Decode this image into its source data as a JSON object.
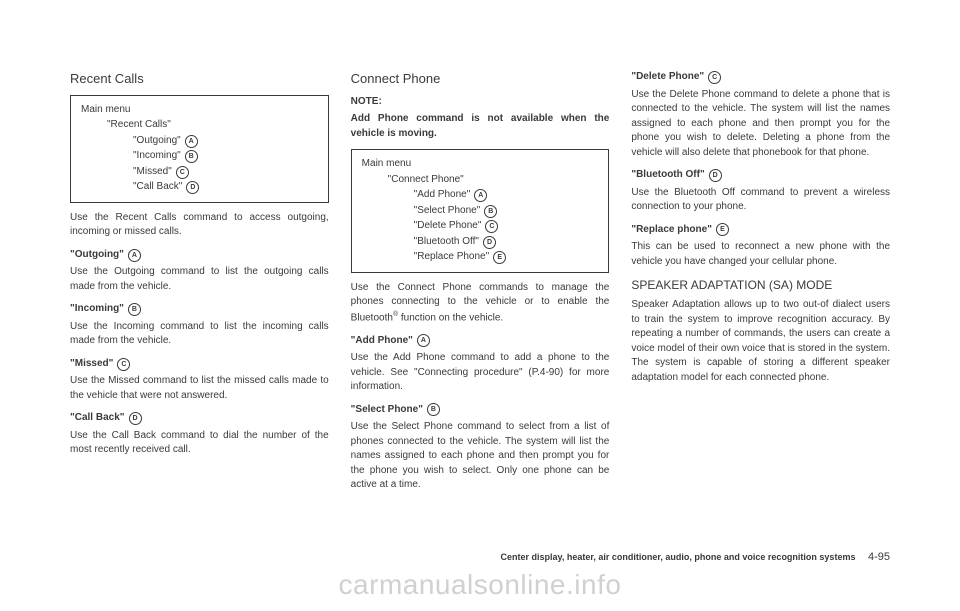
{
  "col1": {
    "title": "Recent Calls",
    "menu": {
      "header": "Main menu",
      "sub": "\"Recent Calls\"",
      "items": [
        {
          "label": "\"Outgoing\"",
          "ring": "A"
        },
        {
          "label": "\"Incoming\"",
          "ring": "B"
        },
        {
          "label": "\"Missed\"",
          "ring": "C"
        },
        {
          "label": "\"Call Back\"",
          "ring": "D"
        }
      ]
    },
    "intro": "Use the Recent Calls command to access outgoing, incoming or missed calls.",
    "blocks": [
      {
        "h": "\"Outgoing\"",
        "ring": "A",
        "p": "Use the Outgoing command to list the outgoing calls made from the vehicle."
      },
      {
        "h": "\"Incoming\"",
        "ring": "B",
        "p": "Use the Incoming command to list the incoming calls made from the vehicle."
      },
      {
        "h": "\"Missed\"",
        "ring": "C",
        "p": "Use the Missed command to list the missed calls made to the vehicle that were not answered."
      },
      {
        "h": "\"Call Back\"",
        "ring": "D",
        "p": "Use the Call Back command to dial the number of the most recently received call."
      }
    ]
  },
  "col2": {
    "title": "Connect Phone",
    "note_label": "NOTE:",
    "note_body": "Add Phone command is not available when the vehicle is moving.",
    "menu": {
      "header": "Main menu",
      "sub": "\"Connect Phone\"",
      "items": [
        {
          "label": "\"Add Phone\"",
          "ring": "A"
        },
        {
          "label": "\"Select Phone\"",
          "ring": "B"
        },
        {
          "label": "\"Delete Phone\"",
          "ring": "C"
        },
        {
          "label": "\"Bluetooth Off\"",
          "ring": "D"
        },
        {
          "label": "\"Replace Phone\"",
          "ring": "E"
        }
      ]
    },
    "intro_a": "Use the Connect Phone commands to manage the phones connecting to the vehicle or to enable the Bluetooth",
    "intro_b": " function on the vehicle.",
    "blocks": [
      {
        "h": "\"Add Phone\"",
        "ring": "A",
        "p": "Use the Add Phone command to add a phone to the vehicle. See \"Connecting procedure\" (P.4-90) for more information."
      },
      {
        "h": "\"Select Phone\"",
        "ring": "B",
        "p": "Use the Select Phone command to select from a list of phones connected to the vehicle. The system will list the names assigned to each phone and then prompt you for the phone you wish to select. Only one phone can be active at a time."
      }
    ]
  },
  "col3": {
    "blocks": [
      {
        "h": "\"Delete Phone\"",
        "ring": "C",
        "p": "Use the Delete Phone command to delete a phone that is connected to the vehicle. The system will list the names assigned to each phone and then prompt you for the phone you wish to delete. Deleting a phone from the vehicle will also delete that phonebook for that phone."
      },
      {
        "h": "\"Bluetooth Off\"",
        "ring": "D",
        "p": "Use the Bluetooth Off command to prevent a wireless connection to your phone."
      },
      {
        "h": "\"Replace phone\"",
        "ring": "E",
        "p": "This can be used to reconnect a new phone with the vehicle you have changed your cellular phone."
      }
    ],
    "sa_title": "SPEAKER ADAPTATION (SA) MODE",
    "sa_body": "Speaker Adaptation allows up to two out-of dialect users to train the system to improve recognition accuracy. By repeating a number of commands, the users can create a voice model of their own voice that is stored in the system. The system is capable of storing a different speaker adaptation model for each connected phone."
  },
  "footer": {
    "section": "Center display, heater, air conditioner, audio, phone and voice recognition systems",
    "page": "4-95"
  },
  "watermark": "carmanualsonline.info"
}
